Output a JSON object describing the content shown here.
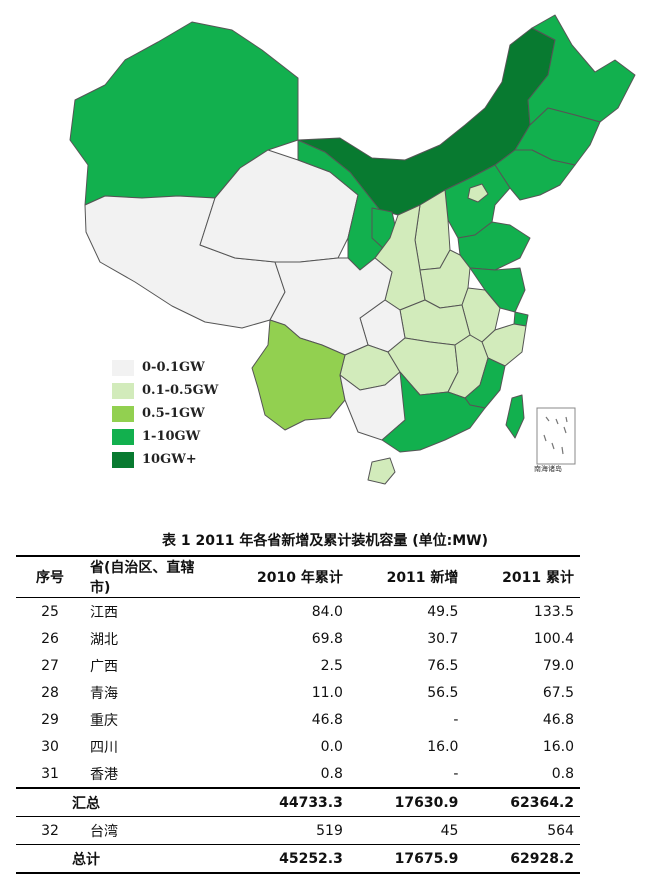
{
  "colors": {
    "c1": "#f2f2f2",
    "c2": "#d2ebbb",
    "c3": "#92d050",
    "c4": "#12b04e",
    "c5": "#087a30"
  },
  "legend": [
    {
      "label": "0-0.1GW",
      "color": "#f2f2f2"
    },
    {
      "label": "0.1-0.5GW",
      "color": "#d2ebbb"
    },
    {
      "label": "0.5-1GW",
      "color": "#92d050"
    },
    {
      "label": "1-10GW",
      "color": "#12b04e"
    },
    {
      "label": "10GW+",
      "color": "#087a30"
    }
  ],
  "inset_label": "南海诸岛",
  "table": {
    "caption": "表 1 2011 年各省新增及累计装机容量 (单位:MW)",
    "headers": [
      "序号",
      "省(自治区、直辖市)",
      "2010 年累计",
      "2011 新增",
      "2011 累计"
    ],
    "rows": [
      {
        "no": "25",
        "name": "江西",
        "v2010": "84.0",
        "new2011": "49.5",
        "cum2011": "133.5"
      },
      {
        "no": "26",
        "name": "湖北",
        "v2010": "69.8",
        "new2011": "30.7",
        "cum2011": "100.4"
      },
      {
        "no": "27",
        "name": "广西",
        "v2010": "2.5",
        "new2011": "76.5",
        "cum2011": "79.0"
      },
      {
        "no": "28",
        "name": "青海",
        "v2010": "11.0",
        "new2011": "56.5",
        "cum2011": "67.5"
      },
      {
        "no": "29",
        "name": "重庆",
        "v2010": "46.8",
        "new2011": "-",
        "cum2011": "46.8"
      },
      {
        "no": "30",
        "name": "四川",
        "v2010": "0.0",
        "new2011": "16.0",
        "cum2011": "16.0"
      },
      {
        "no": "31",
        "name": "香港",
        "v2010": "0.8",
        "new2011": "-",
        "cum2011": "0.8"
      }
    ],
    "subtotal": {
      "label": "汇总",
      "v2010": "44733.3",
      "new2011": "17630.9",
      "cum2011": "62364.2"
    },
    "taiwan": {
      "no": "32",
      "name": "台湾",
      "v2010": "519",
      "new2011": "45",
      "cum2011": "564"
    },
    "total": {
      "label": "总计",
      "v2010": "45252.3",
      "new2011": "17675.9",
      "cum2011": "62928.2"
    }
  }
}
